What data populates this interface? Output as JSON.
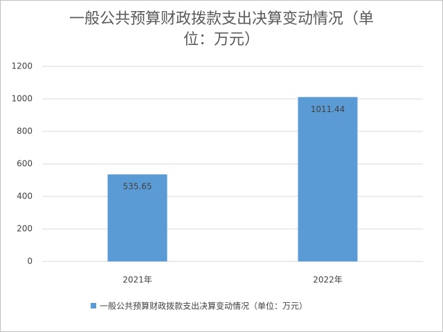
{
  "chart_data": {
    "type": "bar",
    "title": "一般公共预算财政拨款支出决算变动情况（单位：万元）",
    "categories": [
      "2021年",
      "2022年"
    ],
    "series": [
      {
        "name": "一般公共预算财政拨款支出决算变动情况（单位：万元）",
        "color": "#5b9bd5",
        "values": [
          535.65,
          1011.44
        ]
      }
    ],
    "ylim": [
      0,
      1200
    ],
    "yticks": [
      0,
      200,
      400,
      600,
      800,
      1000,
      1200
    ],
    "grid": true,
    "legend": "bottom"
  }
}
